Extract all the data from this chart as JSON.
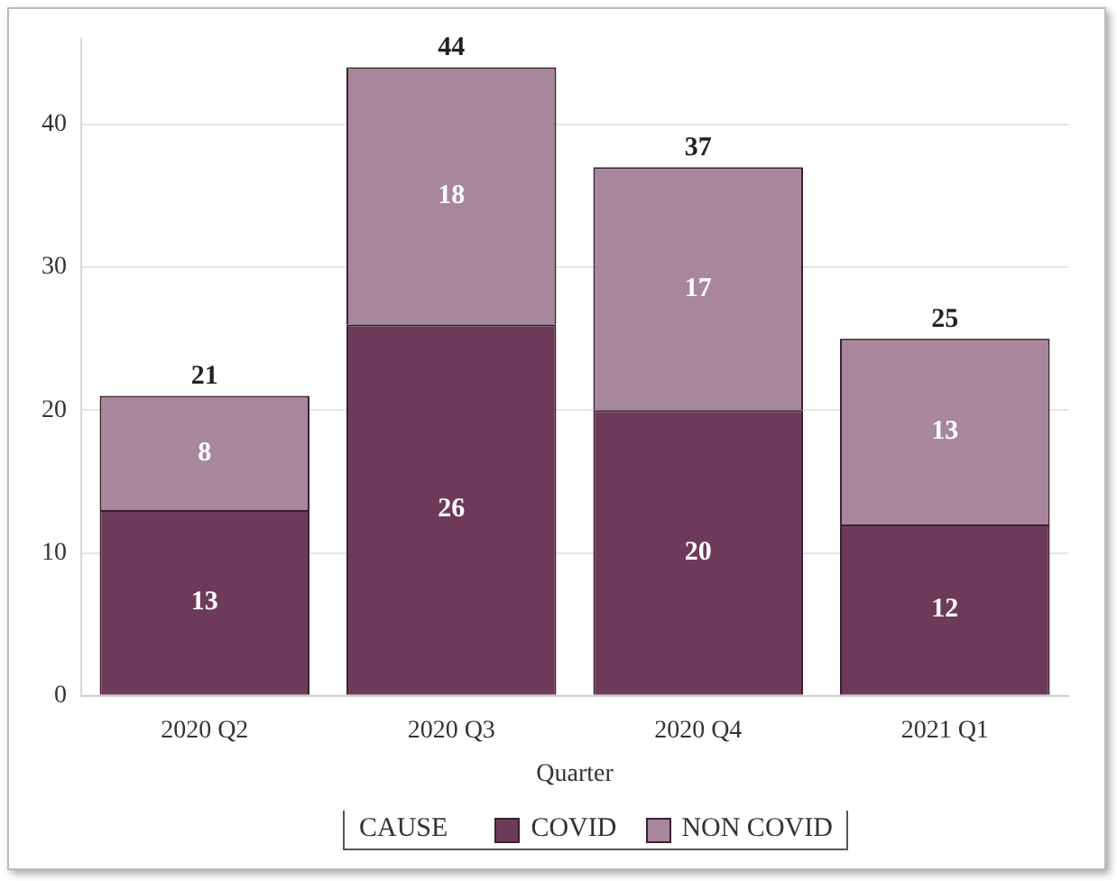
{
  "chart_data": {
    "type": "bar",
    "xlabel": "Quarter",
    "legend_title": "CAUSE",
    "categories": [
      "2020 Q2",
      "2020 Q3",
      "2020 Q4",
      "2021 Q1"
    ],
    "stacked": true,
    "series": [
      {
        "name": "COVID",
        "color": "#6e3a5a",
        "values": [
          13,
          26,
          20,
          12
        ]
      },
      {
        "name": "NON COVID",
        "color": "#a8869b",
        "values": [
          8,
          18,
          17,
          13
        ]
      }
    ],
    "totals": [
      "21",
      "44",
      "37",
      "25"
    ],
    "data_labels": true,
    "ylim": [
      0,
      46
    ],
    "yticks": [
      0,
      10,
      20,
      30,
      40
    ],
    "grid": "y",
    "legend": "bottom"
  }
}
